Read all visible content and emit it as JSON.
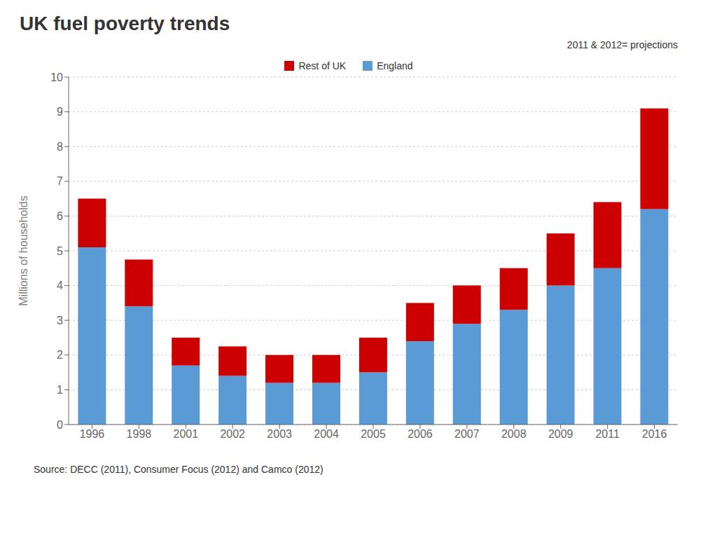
{
  "chart_data": {
    "type": "bar",
    "stacked": true,
    "title": "UK fuel poverty trends",
    "y_label": "Millions of households",
    "annotations": [
      "2011 & 2012= projections",
      "Source: DECC (2011), Consumer Focus (2012) and Camco (2012)"
    ],
    "categories": [
      "1996",
      "1998",
      "2001",
      "2002",
      "2003",
      "2004",
      "2005",
      "2006",
      "2007",
      "2008",
      "2009",
      "2011",
      "2016"
    ],
    "series": [
      {
        "name": "England",
        "color": "#5b9bd5",
        "values": [
          5.1,
          3.4,
          1.7,
          1.4,
          1.2,
          1.2,
          1.5,
          2.4,
          2.9,
          3.3,
          4.0,
          4.5,
          6.2
        ]
      },
      {
        "name": "Rest of UK",
        "color": "#cc0000",
        "values": [
          1.4,
          1.35,
          0.8,
          0.85,
          0.8,
          0.8,
          1.0,
          1.1,
          1.1,
          1.2,
          1.5,
          1.9,
          2.9
        ]
      }
    ],
    "ylim": [
      0,
      10
    ],
    "yticks": [
      0,
      1,
      2,
      3,
      4,
      5,
      6,
      7,
      8,
      9,
      10
    ],
    "grid": true,
    "legend": "top"
  }
}
